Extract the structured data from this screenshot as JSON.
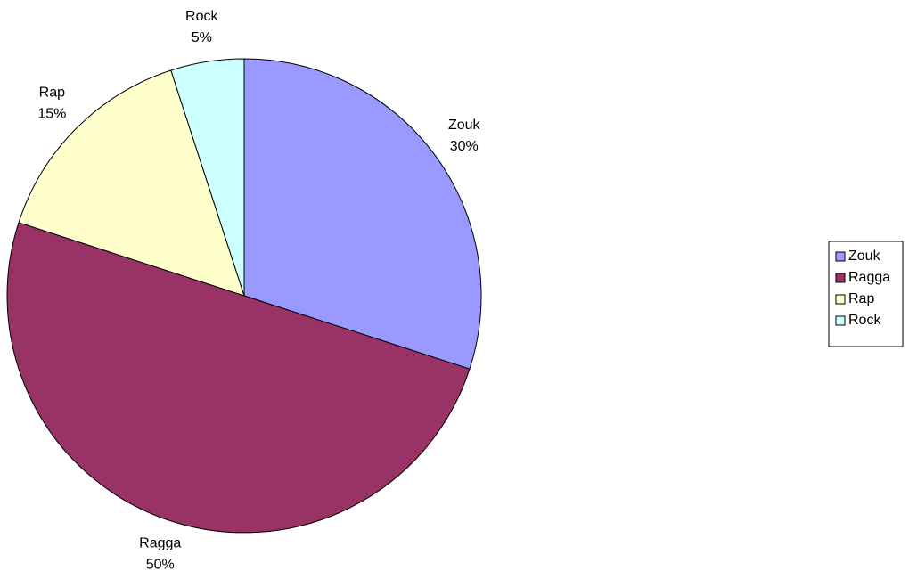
{
  "chart_data": {
    "type": "pie",
    "categories": [
      "Zouk",
      "Ragga",
      "Rap",
      "Rock"
    ],
    "values": [
      30,
      50,
      15,
      5
    ],
    "value_labels": [
      "30%",
      "50%",
      "15%",
      "5%"
    ],
    "colors": [
      "#9999ff",
      "#993366",
      "#ffffcc",
      "#ccffff"
    ],
    "legend": "right"
  }
}
